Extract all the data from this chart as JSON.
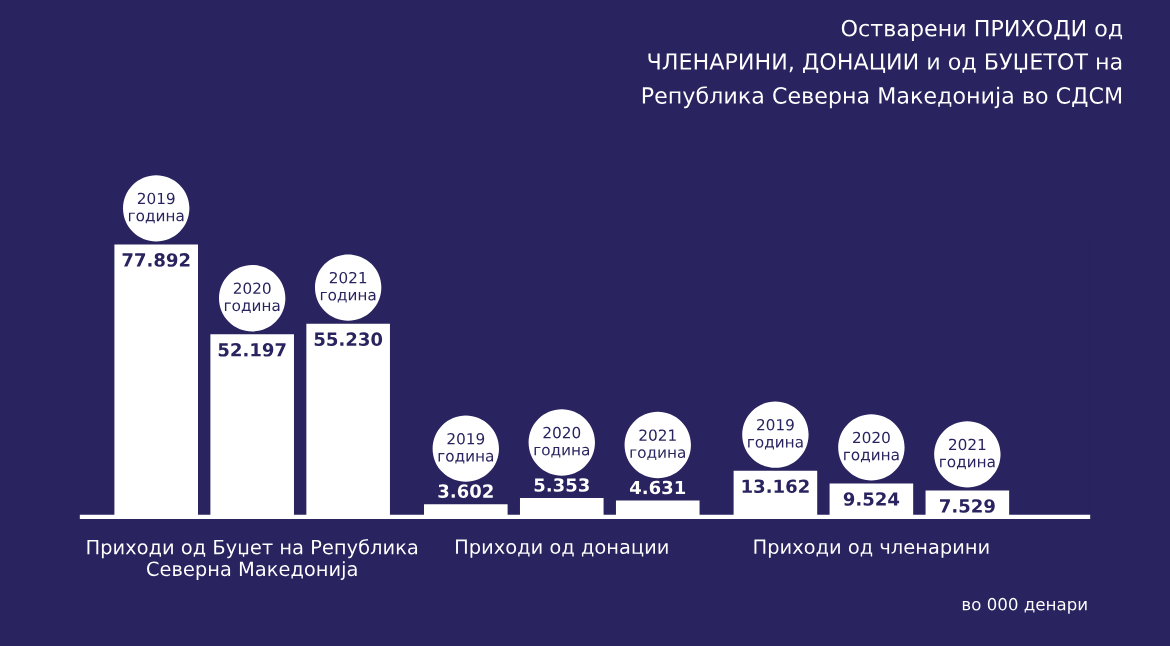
{
  "chart_data": {
    "type": "bar",
    "title": "Остварени ПРИХОДИ од\nЧЛЕНАРИНИ, ДОНАЦИИ и од БУЏЕТОТ на\nРепублика Северна Македонија во СДСМ",
    "categories": [
      "Приходи од Буџет на Република\nСеверна Македонија",
      "Приходи од донации",
      "Приходи од членарини"
    ],
    "series": [
      {
        "name": "2019 година",
        "color": "#ffffff",
        "values": [
          77892,
          3602,
          13162
        ],
        "value_labels": [
          "77.892",
          "3.602",
          "13.162"
        ]
      },
      {
        "name": "2020 година",
        "color": "#ffffff",
        "values": [
          52197,
          5353,
          9524
        ],
        "value_labels": [
          "52.197",
          "5.353",
          "9.524"
        ]
      },
      {
        "name": "2021 година",
        "color": "#ffffff",
        "values": [
          55230,
          4631,
          7529
        ],
        "value_labels": [
          "55.230",
          "4.631",
          "7.529"
        ]
      }
    ],
    "annotations": [
      "во 000 денари"
    ],
    "grid": false,
    "legend": false
  }
}
